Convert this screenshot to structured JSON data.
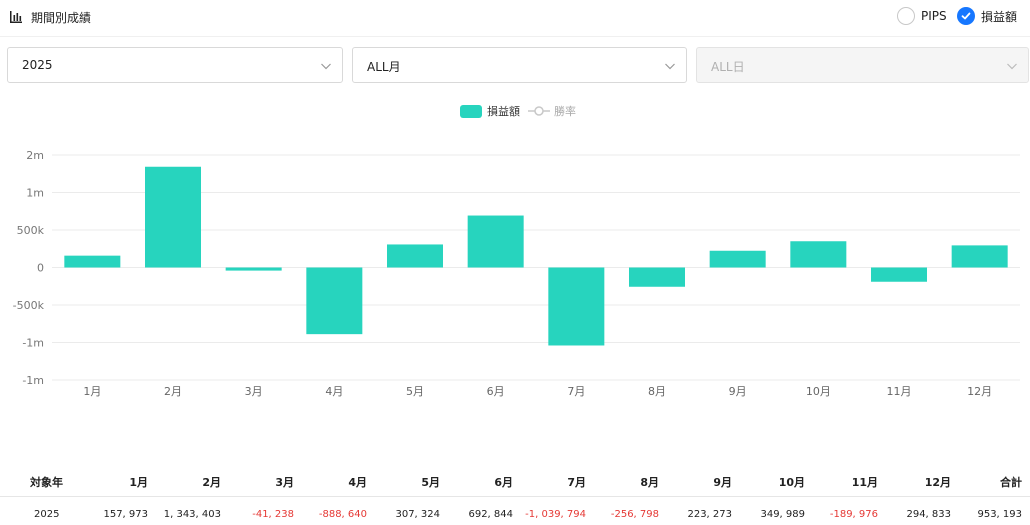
{
  "header": {
    "title": "期間別成績",
    "title_icon": "bar-chart-icon",
    "options": [
      {
        "label": "PIPS",
        "checked": false
      },
      {
        "label": "損益額",
        "checked": true
      }
    ]
  },
  "filters": {
    "year": "2025",
    "month": "ALL月",
    "day": "ALL日"
  },
  "legend": {
    "bar_label": "損益額",
    "line_label": "勝率"
  },
  "chart_data": {
    "type": "bar",
    "categories": [
      "1月",
      "2月",
      "3月",
      "4月",
      "5月",
      "6月",
      "7月",
      "8月",
      "9月",
      "10月",
      "11月",
      "12月"
    ],
    "series": [
      {
        "name": "損益額",
        "values": [
          157973,
          1343403,
          -41238,
          -888640,
          307324,
          692844,
          -1039794,
          -256798,
          223273,
          349989,
          -189976,
          294833
        ]
      }
    ],
    "ylim": [
      -1500000,
      1500000
    ],
    "yticks": [
      {
        "value": 1500000,
        "label": "2m"
      },
      {
        "value": 1000000,
        "label": "1m"
      },
      {
        "value": 500000,
        "label": "500k"
      },
      {
        "value": 0,
        "label": "0"
      },
      {
        "value": -500000,
        "label": "-500k"
      },
      {
        "value": -1000000,
        "label": "-1m"
      },
      {
        "value": -1500000,
        "label": "-1m"
      }
    ],
    "bar_color": "#27d4be",
    "grid": true
  },
  "summary": {
    "headers": [
      "対象年",
      "1月",
      "2月",
      "3月",
      "4月",
      "5月",
      "6月",
      "7月",
      "8月",
      "9月",
      "10月",
      "11月",
      "12月",
      "合計"
    ],
    "row": [
      "2025",
      "157, 973",
      "1, 343, 403",
      "-41, 238",
      "-888, 640",
      "307, 324",
      "692, 844",
      "-1, 039, 794",
      "-256, 798",
      "223, 273",
      "349, 989",
      "-189, 976",
      "294, 833",
      "953, 193"
    ],
    "negative_color": "#e53935"
  }
}
